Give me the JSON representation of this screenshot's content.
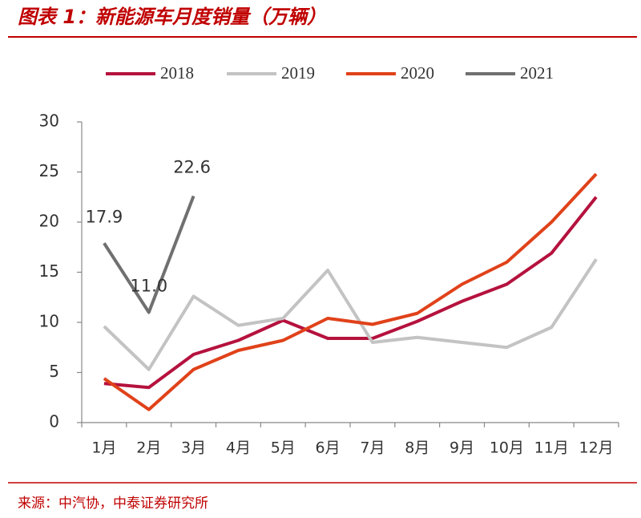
{
  "chart_data": {
    "type": "line",
    "title": "图表 1：新能源车月度销量（万辆）",
    "source": "来源：中汽协，中泰证券研究所",
    "categories": [
      "1月",
      "2月",
      "3月",
      "4月",
      "5月",
      "6月",
      "7月",
      "8月",
      "9月",
      "10月",
      "11月",
      "12月"
    ],
    "series": [
      {
        "name": "2018",
        "color": "#b5123e",
        "values": [
          3.9,
          3.5,
          6.8,
          8.2,
          10.2,
          8.4,
          8.4,
          10.1,
          12.1,
          13.8,
          16.9,
          22.5
        ]
      },
      {
        "name": "2019",
        "color": "#c3c3c3",
        "values": [
          9.6,
          5.3,
          12.6,
          9.7,
          10.4,
          15.2,
          8.0,
          8.5,
          8.0,
          7.5,
          9.5,
          16.3
        ]
      },
      {
        "name": "2020",
        "color": "#e0421a",
        "values": [
          4.4,
          1.3,
          5.3,
          7.2,
          8.2,
          10.4,
          9.8,
          10.9,
          13.8,
          16.0,
          20.0,
          24.8
        ]
      },
      {
        "name": "2021",
        "color": "#707070",
        "values": [
          17.9,
          11.0,
          22.6,
          null,
          null,
          null,
          null,
          null,
          null,
          null,
          null,
          null
        ],
        "value_labels": [
          "17.9",
          "11.0",
          "22.6",
          null,
          null,
          null,
          null,
          null,
          null,
          null,
          null,
          null
        ]
      }
    ],
    "ylim": [
      0,
      30
    ],
    "yticks": [
      0,
      5,
      10,
      15,
      20,
      25,
      30
    ],
    "grid": false,
    "legend": "top"
  }
}
